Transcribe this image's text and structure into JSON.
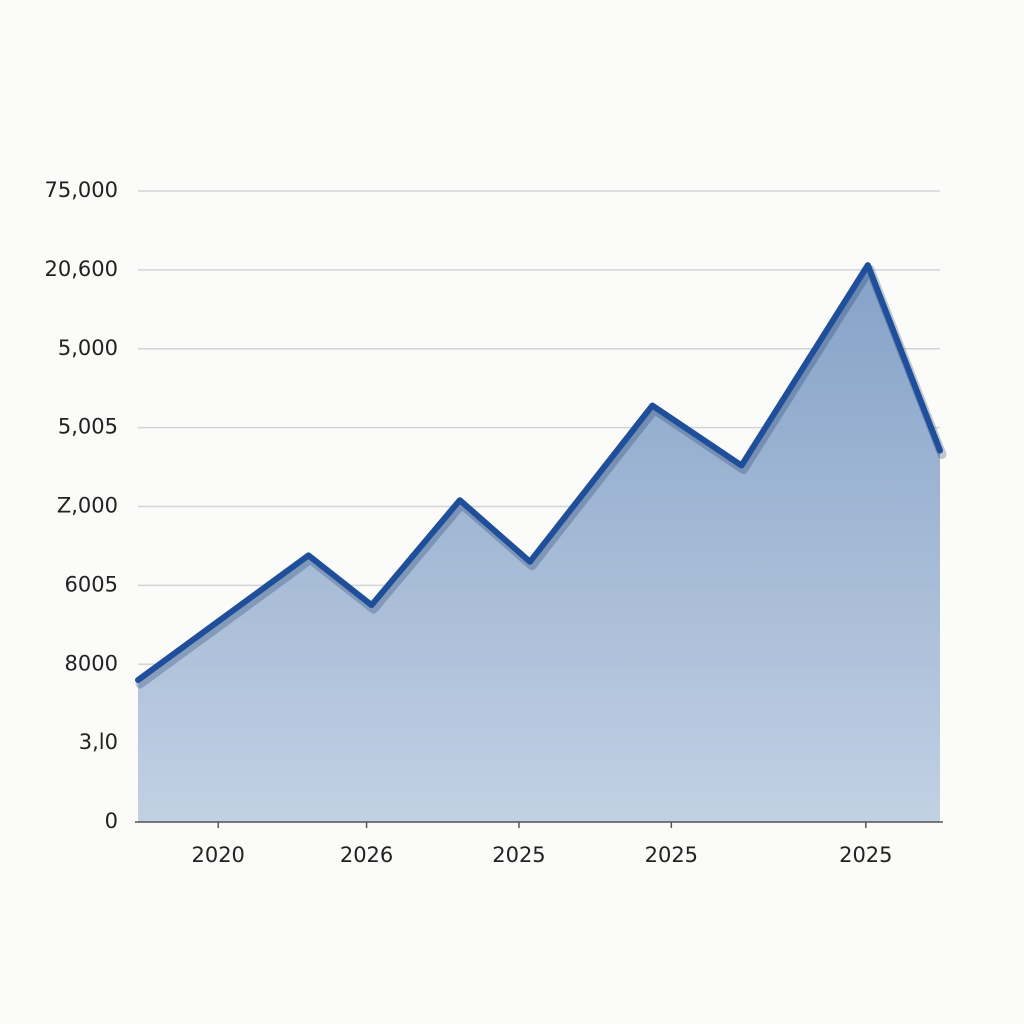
{
  "chart_data": {
    "type": "area",
    "x": [
      0,
      1.7,
      2.33,
      3.21,
      3.91,
      5.13,
      6.02,
      7.28,
      8
    ],
    "values": [
      1.8,
      3.38,
      2.75,
      4.08,
      3.3,
      5.28,
      4.52,
      7.06,
      4.71
    ],
    "color": "#1f4f9a",
    "fill": "#9db3d2",
    "xlim": [
      0,
      8
    ],
    "xticks": [
      {
        "value": 0.8,
        "label": "2020"
      },
      {
        "value": 2.28,
        "label": "2026"
      },
      {
        "value": 3.8,
        "label": "2025"
      },
      {
        "value": 5.32,
        "label": "2025"
      },
      {
        "value": 7.26,
        "label": "2025"
      }
    ],
    "ylim": [
      0,
      8
    ],
    "yticks": [
      0,
      {
        "value": 1,
        "label": "3,l0"
      },
      {
        "value": 2,
        "label": "8000"
      },
      {
        "value": 3,
        "label": "6005"
      },
      {
        "value": 4,
        "label": "Z,000"
      },
      {
        "value": 5,
        "label": "5,005"
      },
      {
        "value": 6,
        "label": "5,000"
      },
      {
        "value": 7,
        "label": "20,600"
      },
      {
        "value": 8,
        "label": "75,000"
      }
    ],
    "grid": true
  }
}
